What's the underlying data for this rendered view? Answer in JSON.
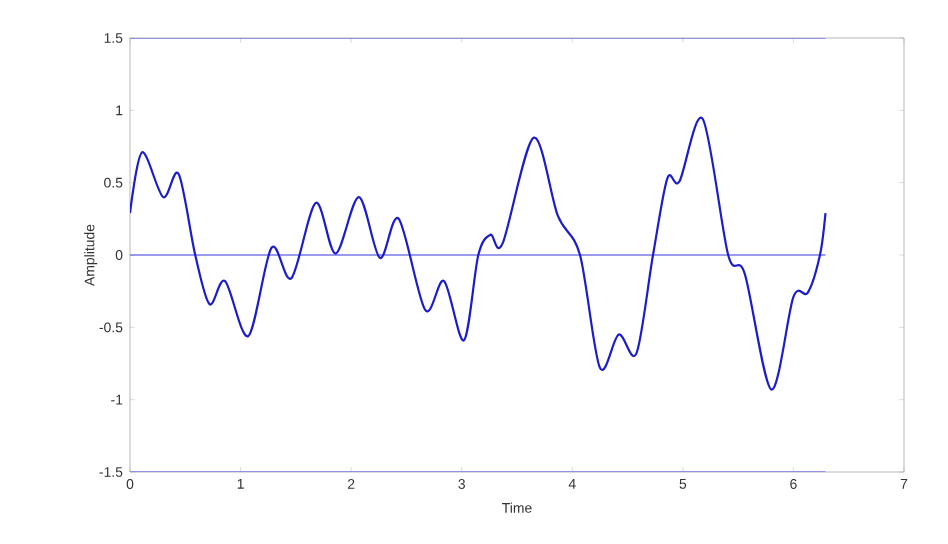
{
  "chart_data": {
    "type": "line",
    "xlabel": "Time",
    "ylabel": "Amplitude",
    "xlim": [
      0,
      7
    ],
    "ylim": [
      -1.5,
      1.5
    ],
    "xticks": [
      0,
      1,
      2,
      3,
      4,
      5,
      6,
      7
    ],
    "yticks": [
      -1.5,
      -1,
      -0.5,
      0,
      0.5,
      1,
      1.5
    ],
    "grid": false,
    "series": [
      {
        "color": "#7878e8",
        "x": [
          0,
          6.29
        ],
        "values": [
          1.5,
          1.5
        ]
      },
      {
        "color": "#7878e8",
        "x": [
          0,
          6.29
        ],
        "values": [
          0,
          0
        ]
      },
      {
        "color": "#7878e8",
        "x": [
          0,
          6.29
        ],
        "values": [
          -1.5,
          -1.5
        ]
      },
      {
        "color": "#1c1cc8",
        "x": [
          0,
          0.11,
          0.3,
          0.44,
          0.59,
          0.72,
          0.86,
          1.07,
          1.28,
          1.46,
          1.68,
          1.86,
          2.07,
          2.26,
          2.43,
          2.67,
          2.84,
          3.02,
          3.15,
          3.26,
          3.37,
          3.65,
          3.87,
          4.07,
          4.25,
          4.42,
          4.58,
          4.73,
          4.86,
          4.97,
          5.18,
          5.41,
          5.56,
          5.8,
          6.0,
          6.13,
          6.24,
          6.29
        ],
        "values": [
          0.29,
          0.71,
          0.4,
          0.56,
          0,
          -0.34,
          -0.18,
          -0.56,
          0.05,
          -0.16,
          0.36,
          0.01,
          0.4,
          -0.02,
          0.25,
          -0.38,
          -0.18,
          -0.59,
          0,
          0.14,
          0.08,
          0.81,
          0.27,
          0,
          -0.78,
          -0.55,
          -0.68,
          0,
          0.53,
          0.51,
          0.94,
          0,
          -0.13,
          -0.93,
          -0.29,
          -0.26,
          0,
          0.29
        ]
      }
    ]
  }
}
